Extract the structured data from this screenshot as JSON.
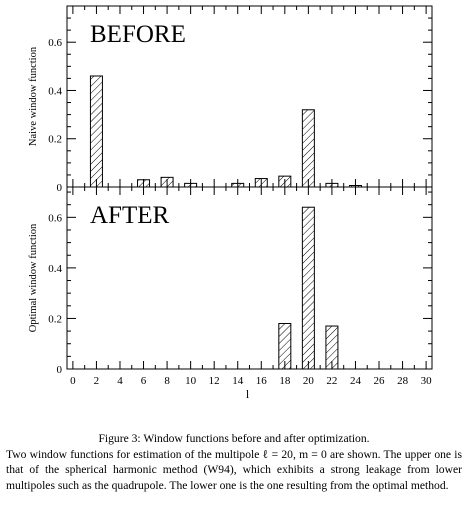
{
  "chart_data": [
    {
      "type": "bar",
      "panel_label": "BEFORE",
      "ylabel": "Naive window function",
      "xlabel": "",
      "ylim": [
        0,
        0.75
      ],
      "xlim": [
        -0.5,
        30.5
      ],
      "yticks": [
        "0",
        "0.2",
        "0.4",
        "0.6"
      ],
      "x": [
        2,
        6,
        8,
        10,
        14,
        16,
        18,
        20,
        22,
        24
      ],
      "values": [
        0.46,
        0.03,
        0.04,
        0.015,
        0.015,
        0.035,
        0.045,
        0.32,
        0.015,
        0.003
      ]
    },
    {
      "type": "bar",
      "panel_label": "AFTER",
      "ylabel": "Optimal window function",
      "xlabel": "l",
      "ylim": [
        0,
        0.72
      ],
      "xlim": [
        -0.5,
        30.5
      ],
      "yticks": [
        "0",
        "0.2",
        "0.4",
        "0.6"
      ],
      "xticks": [
        "0",
        "2",
        "4",
        "6",
        "8",
        "10",
        "12",
        "14",
        "16",
        "18",
        "20",
        "22",
        "24",
        "26",
        "28",
        "30"
      ],
      "x": [
        18,
        20,
        22
      ],
      "values": [
        0.18,
        0.64,
        0.17
      ]
    }
  ],
  "caption": {
    "title": "Figure 3: Window functions before and after optimization.",
    "body": "Two window functions for estimation of the multipole ℓ = 20, m = 0 are shown. The upper one is that of the spherical harmonic method (W94), which exhibits a strong leakage from lower multipoles such as the quadrupole. The lower one is the one resulting from the optimal method."
  }
}
